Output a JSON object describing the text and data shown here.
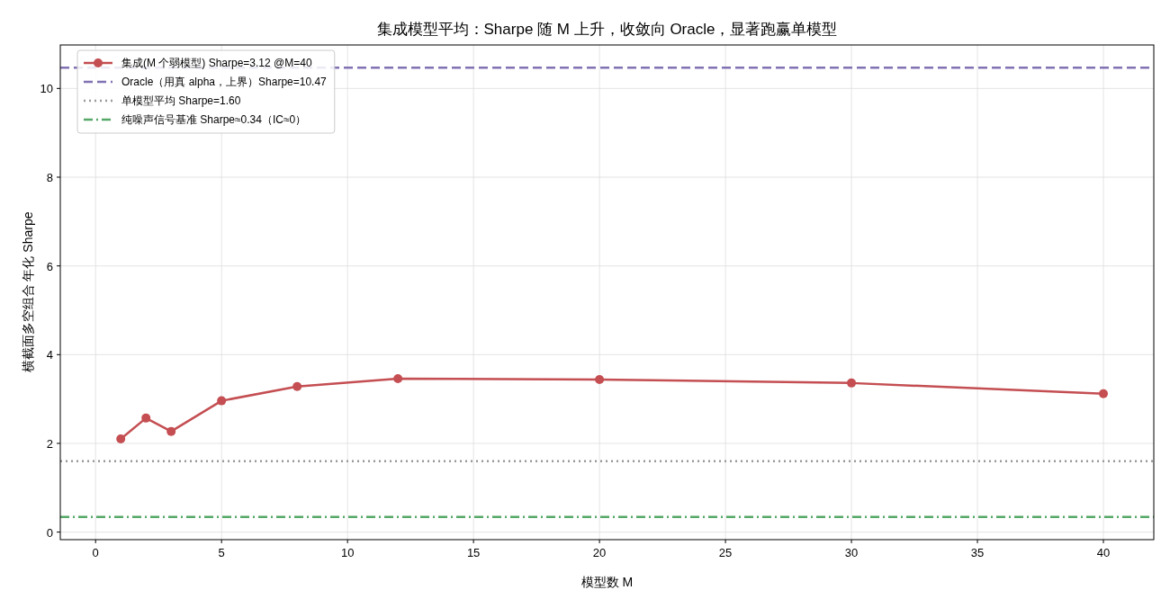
{
  "chart_data": {
    "type": "line",
    "title": "集成模型平均：Sharpe 随 M 上升，收敛向 Oracle，显著跑赢单模型",
    "xlabel": "模型数 M",
    "ylabel": "横截面多空组合 年化 Sharpe",
    "x": [
      1,
      2,
      3,
      5,
      8,
      12,
      20,
      30,
      40
    ],
    "series": [
      {
        "name": "集成(M 个弱模型) Sharpe=3.12 @M=40",
        "color": "#c44e52",
        "values": [
          2.1,
          2.57,
          2.27,
          2.96,
          3.28,
          3.46,
          3.44,
          3.36,
          3.12
        ]
      }
    ],
    "ref_lines": [
      {
        "axis": "y",
        "value": 10.47,
        "label": "Oracle（用真 alpha，上界）Sharpe=10.47",
        "color": "#8172b3",
        "line_style": "dashed"
      },
      {
        "axis": "y",
        "value": 1.6,
        "label": "单模型平均 Sharpe=1.60",
        "color": "#999999",
        "line_style": "dotted"
      },
      {
        "axis": "y",
        "value": 0.34,
        "label": "纯噪声信号基准 Sharpe≈0.34（IC≈0）",
        "color": "#55a868",
        "line_style": "dashdot"
      }
    ],
    "xlim": [
      -1.4,
      42
    ],
    "xticks": [
      0,
      5,
      10,
      15,
      20,
      25,
      30,
      35,
      40
    ],
    "ylim": [
      -0.17,
      10.98
    ],
    "yticks": [
      0,
      2,
      4,
      6,
      8,
      10
    ],
    "grid": true,
    "legend": "top left",
    "marker": "circle",
    "line_style": "solid"
  }
}
